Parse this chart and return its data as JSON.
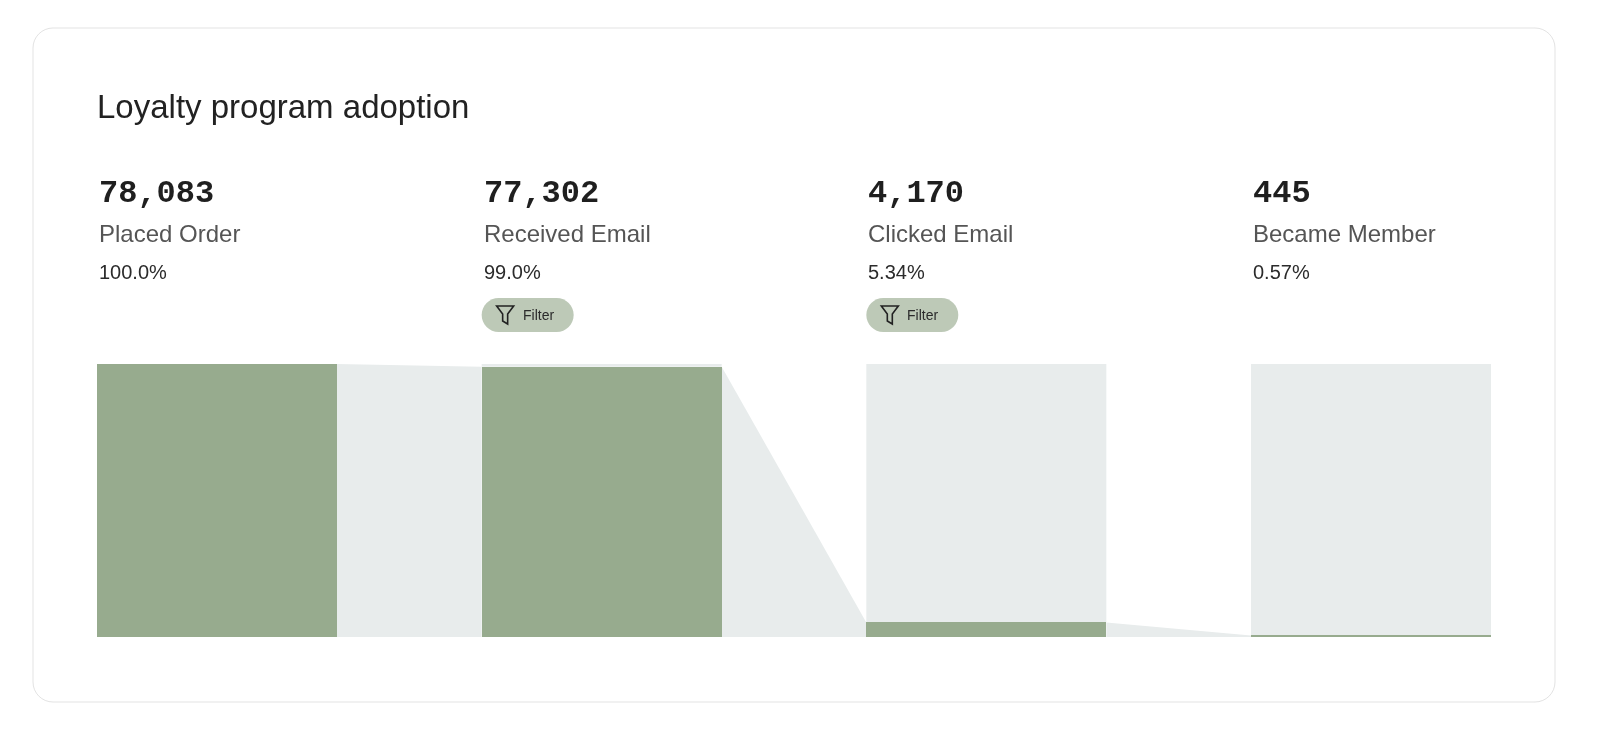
{
  "chart_data": {
    "type": "other",
    "title": "Loyalty program adoption",
    "categories": [
      "Placed Order",
      "Received Email",
      "Clicked Email",
      "Became Member"
    ],
    "values": [
      78083,
      77302,
      4170,
      445
    ],
    "value_labels": [
      "78,083",
      "77,302",
      "4,170",
      "445"
    ],
    "color": "#97ab8e",
    "annotations": [
      {
        "text": "100.0%",
        "x": "Placed Order"
      },
      {
        "text": "99.0%",
        "x": "Received Email"
      },
      {
        "text": "5.34%",
        "x": "Clicked Email"
      },
      {
        "text": "0.57%",
        "x": "Became Member"
      },
      {
        "text": "Filter",
        "x": "Received Email"
      },
      {
        "text": "Filter",
        "x": "Clicked Email"
      }
    ]
  }
}
